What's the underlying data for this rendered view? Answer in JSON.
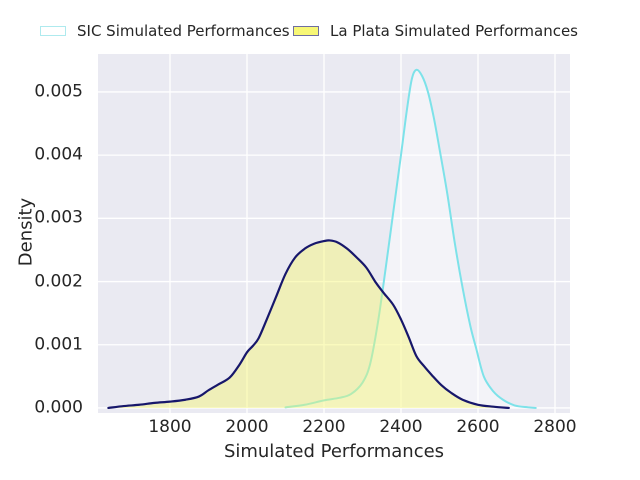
{
  "colors": {
    "page_background": "#ffffff",
    "plot_background": "#eaeaf2",
    "grid": "#ffffff",
    "text": "#262626",
    "sic_line": "#7de2e9",
    "sic_fill": "rgba(255,255,255,0.45)",
    "sic_legend_patch_fill": "#ffffff",
    "sic_legend_patch_border": "#aeeaee",
    "laplata_line": "#17176b",
    "laplata_fill": "rgba(247,247,112,0.45)",
    "laplata_legend_patch_fill": "#f7f776",
    "laplata_legend_patch_border": "#6e6ea0"
  },
  "legend": {
    "items": [
      {
        "label": "SIC Simulated Performances"
      },
      {
        "label": "La Plata Simulated Performances"
      }
    ]
  },
  "chart_data": {
    "type": "area",
    "subtype": "kde-density",
    "title": "",
    "xlabel": "Simulated Performances",
    "ylabel": "Density",
    "xlim": [
      1613,
      2839
    ],
    "ylim": [
      -8e-05,
      0.0056
    ],
    "x_ticks": [
      1800,
      2000,
      2200,
      2400,
      2600,
      2800
    ],
    "x_tick_labels": [
      "1800",
      "2000",
      "2200",
      "2400",
      "2600",
      "2800"
    ],
    "y_ticks": [
      0.0,
      0.001,
      0.002,
      0.003,
      0.004,
      0.005
    ],
    "y_tick_labels": [
      "0.000",
      "0.001",
      "0.002",
      "0.003",
      "0.004",
      "0.005"
    ],
    "grid": true,
    "legend_position": "top",
    "series": [
      {
        "name": "SIC Simulated Performances",
        "peak": {
          "x": 2440,
          "density": 0.00535
        },
        "points": [
          [
            2100,
            1e-05
          ],
          [
            2150,
            5e-05
          ],
          [
            2200,
            0.00012
          ],
          [
            2240,
            0.00016
          ],
          [
            2270,
            0.00022
          ],
          [
            2300,
            0.0004
          ],
          [
            2320,
            0.0007
          ],
          [
            2340,
            0.00135
          ],
          [
            2360,
            0.0022
          ],
          [
            2380,
            0.0031
          ],
          [
            2400,
            0.004
          ],
          [
            2415,
            0.0047
          ],
          [
            2428,
            0.0052
          ],
          [
            2440,
            0.00535
          ],
          [
            2455,
            0.00525
          ],
          [
            2470,
            0.005
          ],
          [
            2485,
            0.0046
          ],
          [
            2500,
            0.0041
          ],
          [
            2520,
            0.0034
          ],
          [
            2540,
            0.0026
          ],
          [
            2560,
            0.0019
          ],
          [
            2580,
            0.0013
          ],
          [
            2595,
            0.00095
          ],
          [
            2615,
            0.0005
          ],
          [
            2640,
            0.00026
          ],
          [
            2665,
            0.00013
          ],
          [
            2695,
            4e-05
          ],
          [
            2730,
            1e-05
          ],
          [
            2750,
            0
          ]
        ]
      },
      {
        "name": "La Plata Simulated Performances",
        "peak": {
          "x": 2215,
          "density": 0.00265
        },
        "points": [
          [
            1640,
            0
          ],
          [
            1680,
            3e-05
          ],
          [
            1720,
            5e-05
          ],
          [
            1760,
            8e-05
          ],
          [
            1800,
            0.0001
          ],
          [
            1840,
            0.00013
          ],
          [
            1875,
            0.00018
          ],
          [
            1900,
            0.00028
          ],
          [
            1925,
            0.00037
          ],
          [
            1955,
            0.00048
          ],
          [
            1980,
            0.00068
          ],
          [
            2000,
            0.00088
          ],
          [
            2015,
            0.00098
          ],
          [
            2030,
            0.0011
          ],
          [
            2050,
            0.00138
          ],
          [
            2075,
            0.00175
          ],
          [
            2100,
            0.00212
          ],
          [
            2125,
            0.00238
          ],
          [
            2150,
            0.00252
          ],
          [
            2175,
            0.0026
          ],
          [
            2200,
            0.00264
          ],
          [
            2215,
            0.00265
          ],
          [
            2235,
            0.00262
          ],
          [
            2260,
            0.00252
          ],
          [
            2285,
            0.00238
          ],
          [
            2310,
            0.00222
          ],
          [
            2335,
            0.00198
          ],
          [
            2355,
            0.00182
          ],
          [
            2380,
            0.00163
          ],
          [
            2400,
            0.0014
          ],
          [
            2420,
            0.00112
          ],
          [
            2440,
            0.00082
          ],
          [
            2460,
            0.00066
          ],
          [
            2480,
            0.00052
          ],
          [
            2505,
            0.00036
          ],
          [
            2530,
            0.00024
          ],
          [
            2560,
            0.00013
          ],
          [
            2600,
            5e-05
          ],
          [
            2640,
            2e-05
          ],
          [
            2680,
            0
          ]
        ]
      }
    ]
  }
}
